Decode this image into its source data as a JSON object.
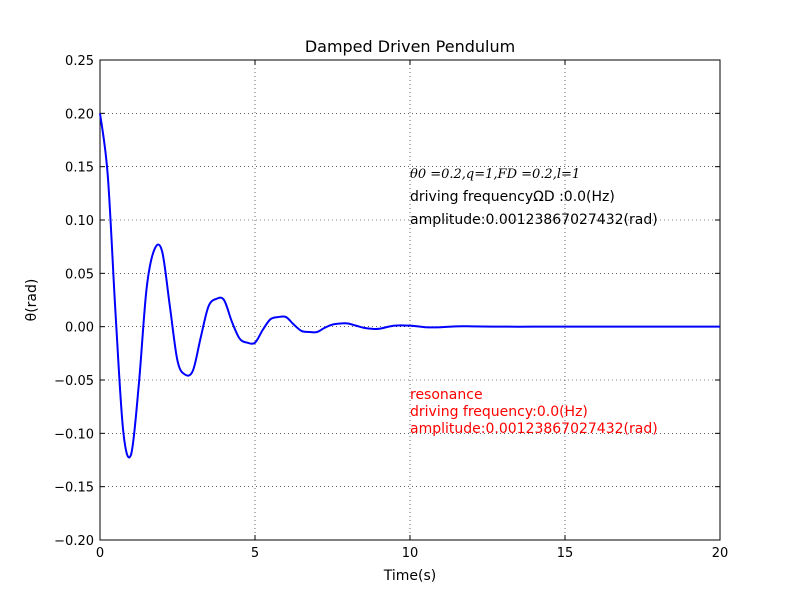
{
  "chart_data": {
    "type": "line",
    "title": "Damped Driven Pendulum",
    "xlabel": "Time(s)",
    "ylabel": "θ(rad)",
    "xlim": [
      0,
      20
    ],
    "ylim": [
      -0.2,
      0.25
    ],
    "xticks": [
      0,
      5,
      10,
      15,
      20
    ],
    "xtick_labels": [
      "0",
      "5",
      "10",
      "15",
      "20"
    ],
    "yticks": [
      -0.2,
      -0.15,
      -0.1,
      -0.05,
      0.0,
      0.05,
      0.1,
      0.15,
      0.2,
      0.25
    ],
    "ytick_labels": [
      "−0.20",
      "−0.15",
      "−0.10",
      "−0.05",
      "0.00",
      "0.05",
      "0.10",
      "0.15",
      "0.20",
      "0.25"
    ],
    "grid": true,
    "series": [
      {
        "color": "#0000ff",
        "x": [
          0,
          0.25,
          0.5,
          0.75,
          1.0,
          1.25,
          1.5,
          1.75,
          2.0,
          2.25,
          2.5,
          2.75,
          3.0,
          3.25,
          3.5,
          3.75,
          4.0,
          4.25,
          4.5,
          4.75,
          5.0,
          5.25,
          5.5,
          5.75,
          6.0,
          6.25,
          6.5,
          6.75,
          7.0,
          7.25,
          7.5,
          7.75,
          8.0,
          8.25,
          8.5,
          8.75,
          9.0,
          9.5,
          10.0,
          10.5,
          11.0,
          11.5,
          12.0,
          13.0,
          14.0,
          15.0,
          16.0,
          17.0,
          18.0,
          19.0,
          20.0
        ],
        "y": [
          0.2,
          0.142,
          0.013,
          -0.098,
          -0.12,
          -0.055,
          0.035,
          0.072,
          0.071,
          0.02,
          -0.032,
          -0.045,
          -0.041,
          -0.01,
          0.019,
          0.026,
          0.025,
          0.005,
          -0.011,
          -0.015,
          -0.015,
          -0.003,
          0.007,
          0.009,
          0.009,
          0.002,
          -0.004,
          -0.005,
          -0.005,
          -0.001,
          0.002,
          0.003,
          0.003,
          0.001,
          -0.001,
          -0.002,
          -0.002,
          0.001,
          0.001,
          -0.0005,
          -0.0005,
          0.0003,
          0.0003,
          0.0,
          0.0,
          0.0,
          0.0,
          0.0,
          0.0,
          0.0,
          0.0
        ]
      }
    ]
  },
  "annotations": {
    "black_line1": "θ0 =0.2,q=1,FD =0.2,l=1",
    "black_line2": "driving frequencyΩD :0.0(Hz)",
    "black_line3": "amplitude:0.00123867027432(rad)",
    "red_line1": "resonance",
    "red_line2": "driving frequency:0.0(Hz)",
    "red_line3": "amplitude:0.00123867027432(rad)"
  }
}
